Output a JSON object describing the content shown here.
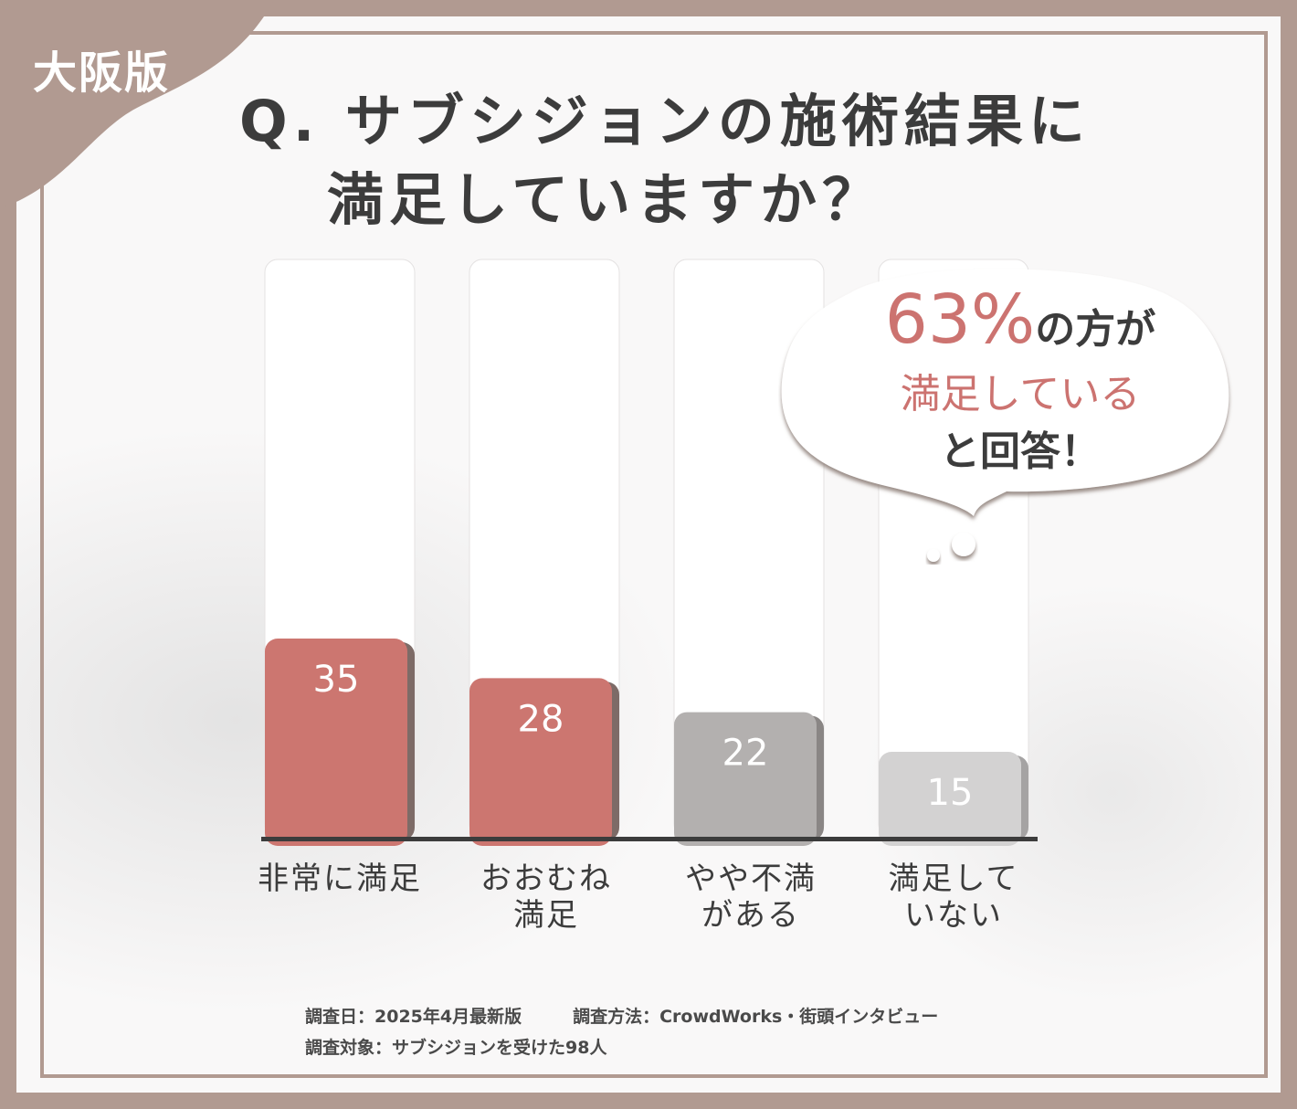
{
  "badge": "大阪版",
  "title": {
    "line1": "Q. サブシジョンの施術結果に",
    "line2": "満足していますか？"
  },
  "callout": {
    "percent": "63%",
    "line1_suffix": "の方が",
    "line2": "満足している",
    "line3": "と回答！"
  },
  "chart_data": {
    "type": "bar",
    "categories": [
      "非常に満足",
      "おおむね満足",
      "やや不満がある",
      "満足していない"
    ],
    "category_lines": [
      [
        "非常に満足"
      ],
      [
        "おおむね",
        "満足"
      ],
      [
        "やや不満",
        "がある"
      ],
      [
        "満足して",
        "いない"
      ]
    ],
    "values": [
      35,
      28,
      22,
      15
    ],
    "value_labels": [
      "35",
      "28",
      "22",
      "15"
    ],
    "colors": [
      "#cc7670",
      "#cc7670",
      "#b3b0af",
      "#d3d2d2"
    ],
    "shadow_colors": [
      "#7d6b67",
      "#7d6b67",
      "#8a8685",
      "#a5a3a3"
    ],
    "track_color": "#ffffff"
  },
  "footer": {
    "date": "調査日：2025年4月最新版",
    "method": "調査方法：CrowdWorks・街頭インタビュー",
    "target": "調査対象：サブシジョンを受けた98人"
  },
  "colors": {
    "frame": "#b19a91",
    "accent": "#cc7370",
    "text": "#3c3c3c"
  }
}
